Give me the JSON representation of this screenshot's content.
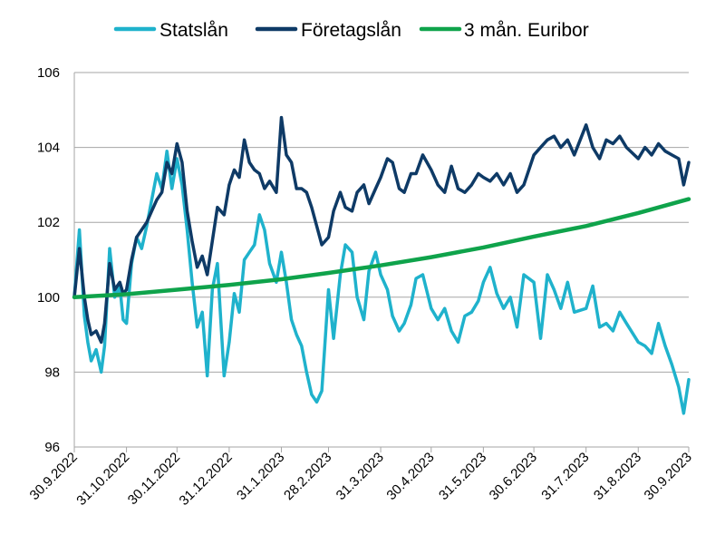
{
  "chart_data": {
    "type": "line",
    "title": "",
    "xlabel": "",
    "ylabel": "",
    "ylim": [
      96,
      106
    ],
    "yticks": [
      96,
      98,
      100,
      102,
      104,
      106
    ],
    "x_range": [
      "2022-09-30",
      "2023-09-30"
    ],
    "x_tick_labels": [
      "30.9.2022",
      "31.10.2022",
      "30.11.2022",
      "31.12.2022",
      "31.1.2023",
      "28.2.2023",
      "31.3.2023",
      "30.4.2023",
      "31.5.2023",
      "30.6.2023",
      "31.7.2023",
      "31.8.2023",
      "30.9.2023"
    ],
    "x_tick_dates": [
      "2022-09-30",
      "2022-10-31",
      "2022-11-30",
      "2022-12-31",
      "2023-01-31",
      "2023-02-28",
      "2023-03-31",
      "2023-04-30",
      "2023-05-31",
      "2023-06-30",
      "2023-07-31",
      "2023-08-31",
      "2023-09-30"
    ],
    "grid": "horizontal",
    "legend_position": "top",
    "series": [
      {
        "name": "Statslån",
        "color": "#1FB2CC",
        "x": [
          "2022-09-30",
          "2022-10-03",
          "2022-10-06",
          "2022-10-08",
          "2022-10-10",
          "2022-10-13",
          "2022-10-16",
          "2022-10-18",
          "2022-10-21",
          "2022-10-24",
          "2022-10-27",
          "2022-10-29",
          "2022-10-31",
          "2022-11-03",
          "2022-11-06",
          "2022-11-09",
          "2022-11-12",
          "2022-11-15",
          "2022-11-18",
          "2022-11-21",
          "2022-11-24",
          "2022-11-27",
          "2022-11-30",
          "2022-12-03",
          "2022-12-06",
          "2022-12-09",
          "2022-12-12",
          "2022-12-15",
          "2022-12-18",
          "2022-12-21",
          "2022-12-24",
          "2022-12-28",
          "2022-12-31",
          "2023-01-03",
          "2023-01-06",
          "2023-01-09",
          "2023-01-12",
          "2023-01-15",
          "2023-01-18",
          "2023-01-21",
          "2023-01-24",
          "2023-01-28",
          "2023-01-31",
          "2023-02-03",
          "2023-02-06",
          "2023-02-09",
          "2023-02-12",
          "2023-02-15",
          "2023-02-18",
          "2023-02-21",
          "2023-02-24",
          "2023-02-28",
          "2023-03-03",
          "2023-03-07",
          "2023-03-10",
          "2023-03-14",
          "2023-03-17",
          "2023-03-21",
          "2023-03-24",
          "2023-03-28",
          "2023-03-31",
          "2023-04-04",
          "2023-04-07",
          "2023-04-11",
          "2023-04-14",
          "2023-04-18",
          "2023-04-21",
          "2023-04-25",
          "2023-04-30",
          "2023-05-04",
          "2023-05-08",
          "2023-05-12",
          "2023-05-16",
          "2023-05-20",
          "2023-05-24",
          "2023-05-28",
          "2023-05-31",
          "2023-06-04",
          "2023-06-08",
          "2023-06-12",
          "2023-06-16",
          "2023-06-20",
          "2023-06-24",
          "2023-06-30",
          "2023-07-04",
          "2023-07-08",
          "2023-07-12",
          "2023-07-16",
          "2023-07-20",
          "2023-07-24",
          "2023-07-31",
          "2023-08-04",
          "2023-08-08",
          "2023-08-12",
          "2023-08-16",
          "2023-08-20",
          "2023-08-24",
          "2023-08-31",
          "2023-09-04",
          "2023-09-08",
          "2023-09-12",
          "2023-09-16",
          "2023-09-20",
          "2023-09-24",
          "2023-09-27",
          "2023-09-30"
        ],
        "values": [
          100.0,
          101.8,
          99.5,
          98.8,
          98.3,
          98.6,
          98.0,
          98.7,
          101.3,
          100.0,
          100.3,
          99.4,
          99.3,
          100.9,
          101.6,
          101.3,
          101.9,
          102.6,
          103.3,
          102.9,
          103.9,
          102.9,
          103.7,
          103.0,
          101.8,
          100.4,
          99.2,
          99.6,
          97.9,
          100.2,
          100.9,
          97.9,
          98.8,
          100.1,
          99.6,
          101.0,
          101.2,
          101.4,
          102.2,
          101.8,
          100.9,
          100.4,
          101.2,
          100.4,
          99.4,
          99.0,
          98.7,
          98.0,
          97.4,
          97.2,
          97.5,
          100.2,
          98.9,
          100.6,
          101.4,
          101.2,
          100.0,
          99.4,
          100.7,
          101.2,
          100.6,
          100.2,
          99.5,
          99.1,
          99.3,
          99.8,
          100.5,
          100.6,
          99.7,
          99.4,
          99.7,
          99.1,
          98.8,
          99.5,
          99.6,
          99.9,
          100.4,
          100.8,
          100.1,
          99.7,
          100.0,
          99.2,
          100.6,
          100.4,
          98.9,
          100.6,
          100.2,
          99.7,
          100.4,
          99.6,
          99.7,
          100.3,
          99.2,
          99.3,
          99.1,
          99.6,
          99.3,
          98.8,
          98.7,
          98.5,
          99.3,
          98.7,
          98.2,
          97.6,
          96.9,
          97.8
        ]
      },
      {
        "name": "Företagslån",
        "color": "#0E3A66",
        "x": [
          "2022-09-30",
          "2022-10-03",
          "2022-10-06",
          "2022-10-08",
          "2022-10-10",
          "2022-10-13",
          "2022-10-16",
          "2022-10-18",
          "2022-10-21",
          "2022-10-24",
          "2022-10-27",
          "2022-10-29",
          "2022-10-31",
          "2022-11-03",
          "2022-11-06",
          "2022-11-09",
          "2022-11-12",
          "2022-11-15",
          "2022-11-18",
          "2022-11-21",
          "2022-11-24",
          "2022-11-27",
          "2022-11-30",
          "2022-12-03",
          "2022-12-06",
          "2022-12-09",
          "2022-12-12",
          "2022-12-15",
          "2022-12-18",
          "2022-12-21",
          "2022-12-24",
          "2022-12-28",
          "2022-12-31",
          "2023-01-03",
          "2023-01-06",
          "2023-01-09",
          "2023-01-12",
          "2023-01-15",
          "2023-01-18",
          "2023-01-21",
          "2023-01-24",
          "2023-01-28",
          "2023-01-31",
          "2023-02-03",
          "2023-02-06",
          "2023-02-09",
          "2023-02-12",
          "2023-02-15",
          "2023-02-18",
          "2023-02-21",
          "2023-02-24",
          "2023-02-28",
          "2023-03-03",
          "2023-03-07",
          "2023-03-10",
          "2023-03-14",
          "2023-03-17",
          "2023-03-21",
          "2023-03-24",
          "2023-03-28",
          "2023-03-31",
          "2023-04-04",
          "2023-04-07",
          "2023-04-11",
          "2023-04-14",
          "2023-04-18",
          "2023-04-21",
          "2023-04-25",
          "2023-04-30",
          "2023-05-04",
          "2023-05-08",
          "2023-05-12",
          "2023-05-16",
          "2023-05-20",
          "2023-05-24",
          "2023-05-28",
          "2023-05-31",
          "2023-06-04",
          "2023-06-08",
          "2023-06-12",
          "2023-06-16",
          "2023-06-20",
          "2023-06-24",
          "2023-06-30",
          "2023-07-04",
          "2023-07-08",
          "2023-07-12",
          "2023-07-16",
          "2023-07-20",
          "2023-07-24",
          "2023-07-31",
          "2023-08-04",
          "2023-08-08",
          "2023-08-12",
          "2023-08-16",
          "2023-08-20",
          "2023-08-24",
          "2023-08-31",
          "2023-09-04",
          "2023-09-08",
          "2023-09-12",
          "2023-09-16",
          "2023-09-20",
          "2023-09-24",
          "2023-09-27",
          "2023-09-30"
        ],
        "values": [
          100.0,
          101.3,
          100.0,
          99.4,
          99.0,
          99.1,
          98.8,
          99.3,
          100.9,
          100.2,
          100.4,
          100.1,
          100.2,
          101.0,
          101.6,
          101.8,
          102.0,
          102.3,
          102.6,
          102.8,
          103.6,
          103.3,
          104.1,
          103.6,
          102.3,
          101.5,
          100.8,
          101.1,
          100.6,
          101.5,
          102.4,
          102.2,
          103.0,
          103.4,
          103.2,
          104.2,
          103.6,
          103.4,
          103.3,
          102.9,
          103.1,
          102.8,
          104.8,
          103.8,
          103.6,
          102.9,
          102.9,
          102.8,
          102.4,
          101.9,
          101.4,
          101.6,
          102.3,
          102.8,
          102.4,
          102.3,
          102.8,
          103.0,
          102.5,
          102.9,
          103.2,
          103.7,
          103.6,
          102.9,
          102.8,
          103.3,
          103.3,
          103.8,
          103.4,
          103.0,
          102.8,
          103.5,
          102.9,
          102.8,
          103.0,
          103.3,
          103.2,
          103.1,
          103.3,
          103.0,
          103.3,
          102.8,
          103.0,
          103.8,
          104.0,
          104.2,
          104.3,
          104.0,
          104.2,
          103.8,
          104.6,
          104.0,
          103.7,
          104.2,
          104.1,
          104.3,
          104.0,
          103.7,
          104.0,
          103.8,
          104.1,
          103.9,
          103.8,
          103.7,
          103.0,
          103.6
        ]
      },
      {
        "name": "3 mån. Euribor",
        "color": "#0FA34B",
        "x": [
          "2022-09-30",
          "2022-10-31",
          "2022-11-30",
          "2022-12-31",
          "2023-01-31",
          "2023-02-28",
          "2023-03-31",
          "2023-04-30",
          "2023-05-31",
          "2023-06-30",
          "2023-07-31",
          "2023-08-31",
          "2023-09-30"
        ],
        "values": [
          100.0,
          100.08,
          100.2,
          100.33,
          100.48,
          100.65,
          100.85,
          101.07,
          101.33,
          101.62,
          101.9,
          102.25,
          102.62
        ]
      }
    ]
  }
}
